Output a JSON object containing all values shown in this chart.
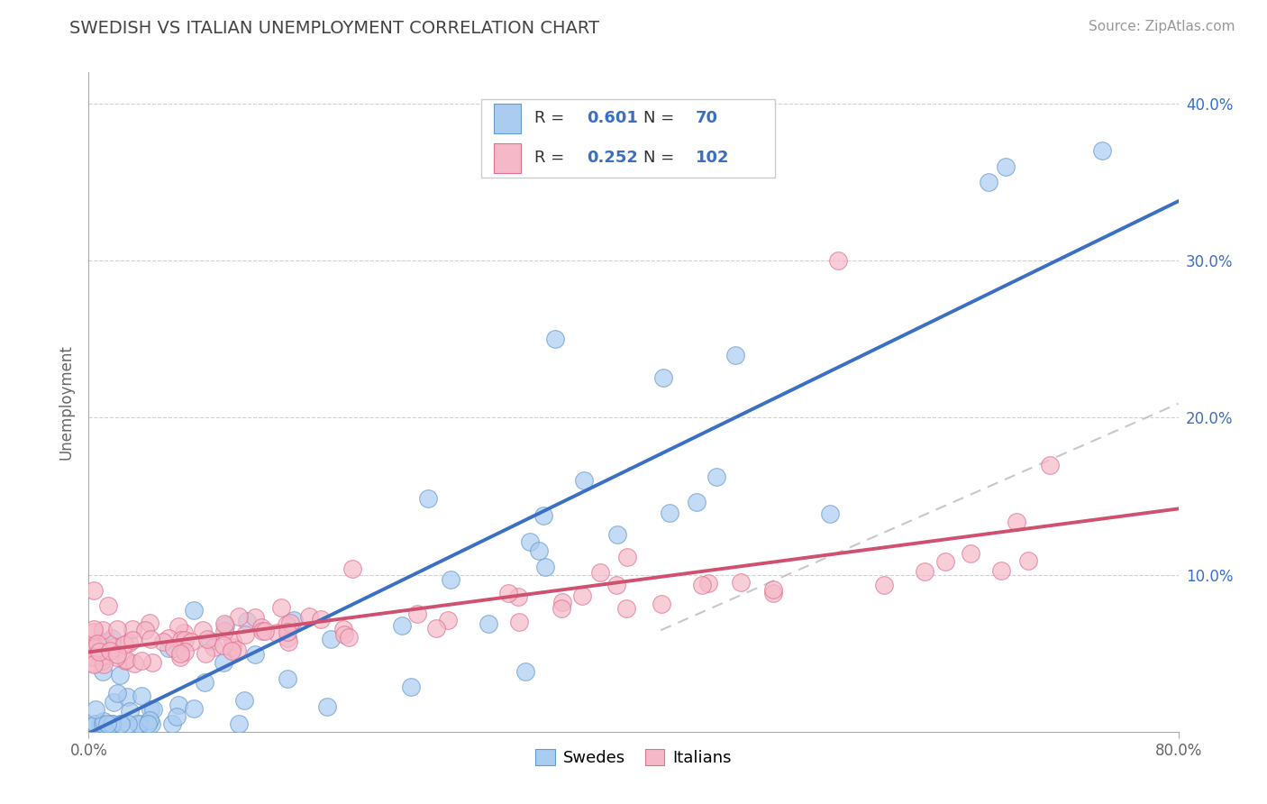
{
  "title": "SWEDISH VS ITALIAN UNEMPLOYMENT CORRELATION CHART",
  "source": "Source: ZipAtlas.com",
  "ylabel_label": "Unemployment",
  "xlim": [
    0.0,
    0.8
  ],
  "ylim": [
    0.0,
    0.42
  ],
  "ytick_labels": [
    "10.0%",
    "20.0%",
    "30.0%",
    "40.0%"
  ],
  "ytick_values": [
    0.1,
    0.2,
    0.3,
    0.4
  ],
  "legend_r_swedes": "R = 0.601",
  "legend_n_swedes": "N =  70",
  "legend_r_italians": "R = 0.252",
  "legend_n_italians": "N = 102",
  "color_swedes_fill": "#aaccf0",
  "color_swedes_edge": "#6699cc",
  "color_italians_fill": "#f5b8c8",
  "color_italians_edge": "#e07090",
  "color_trend_swedes": "#3a6fc4",
  "color_trend_italians": "#d05070",
  "color_dashed": "#bbbbbb",
  "color_legend_text_blue": "#3a6fc4",
  "color_legend_text_black": "#333333",
  "background_color": "#ffffff",
  "grid_color": "#cccccc",
  "title_color": "#444444",
  "title_fontsize": 14,
  "source_fontsize": 11,
  "axis_label_fontsize": 12,
  "tick_fontsize": 12,
  "legend_fontsize": 13
}
